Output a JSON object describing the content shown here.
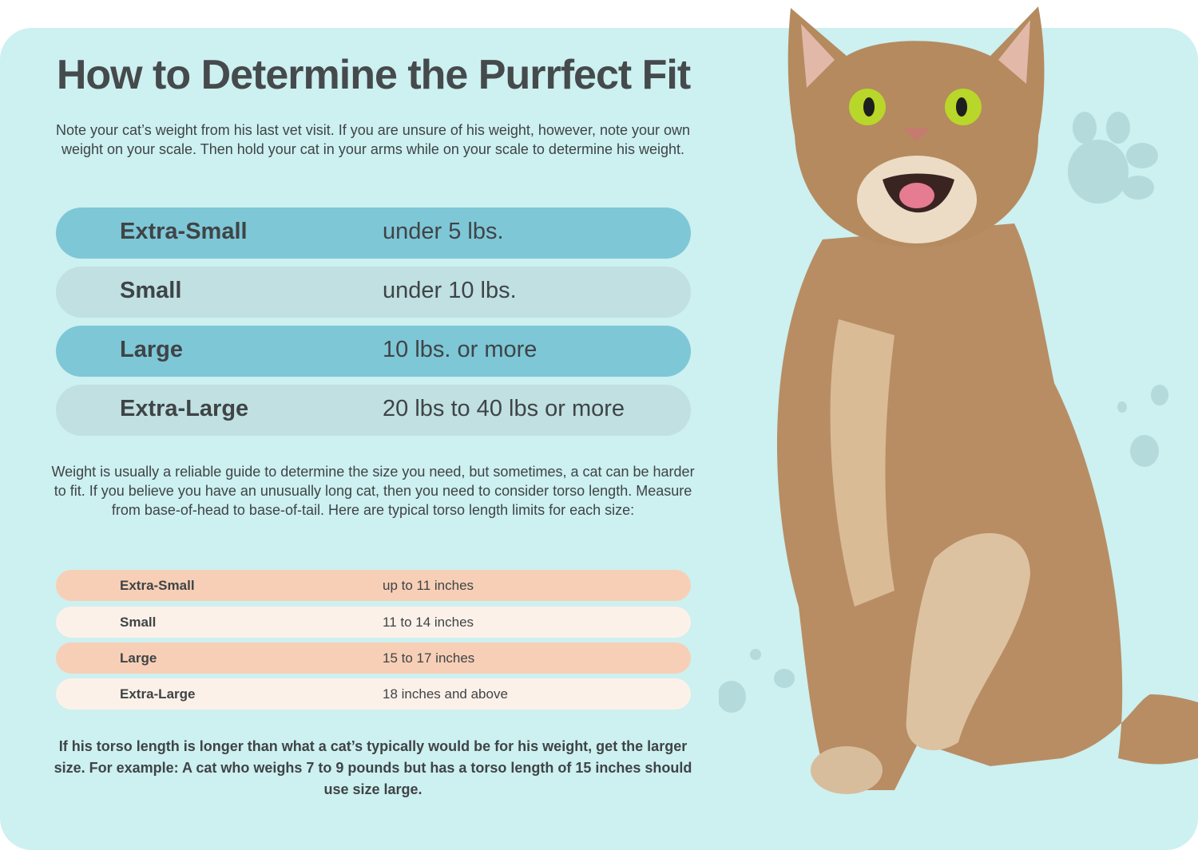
{
  "title": "How to Determine the Purrfect Fit",
  "intro": "Note your cat’s weight from his last vet visit. If you are unsure of his weight, however, note your own weight on your scale. Then hold your cat in your arms while on your scale to determine his weight.",
  "weight_sizes": [
    {
      "size": "Extra-Small",
      "weight": "under 5 lbs."
    },
    {
      "size": "Small",
      "weight": "under 10 lbs."
    },
    {
      "size": "Large",
      "weight": "10 lbs. or more"
    },
    {
      "size": "Extra-Large",
      "weight": "20 lbs to 40 lbs or more"
    }
  ],
  "torso_intro": "Weight is usually a reliable guide to determine the size you need, but sometimes, a cat can be harder to fit. If you believe you have an unusually long cat, then you need to consider torso length. Measure from base-of-head to base-of-tail. Here are typical torso length limits for each size:",
  "torso_sizes": [
    {
      "size": "Extra-Small",
      "length": "up to 11 inches"
    },
    {
      "size": "Small",
      "length": "11 to 14 inches"
    },
    {
      "size": "Large",
      "length": "15 to 17 inches"
    },
    {
      "size": "Extra-Large",
      "length": "18 inches and above"
    }
  ],
  "footnote": "If his torso length is longer than what a cat’s typically would be for his weight, get the larger size. For example: A cat who weighs 7 to 9 pounds but has a torso length of 15 inches should use size large.",
  "colors": {
    "background": "#cdf0f0",
    "weight_row_dark": "#7ec7d7",
    "weight_row_light": "#c0e0e2",
    "torso_row_dark": "#f7cfb7",
    "torso_row_light": "#fcf1e9"
  },
  "image": "tabby-cat-photo",
  "decoration": "paw-print-icon"
}
